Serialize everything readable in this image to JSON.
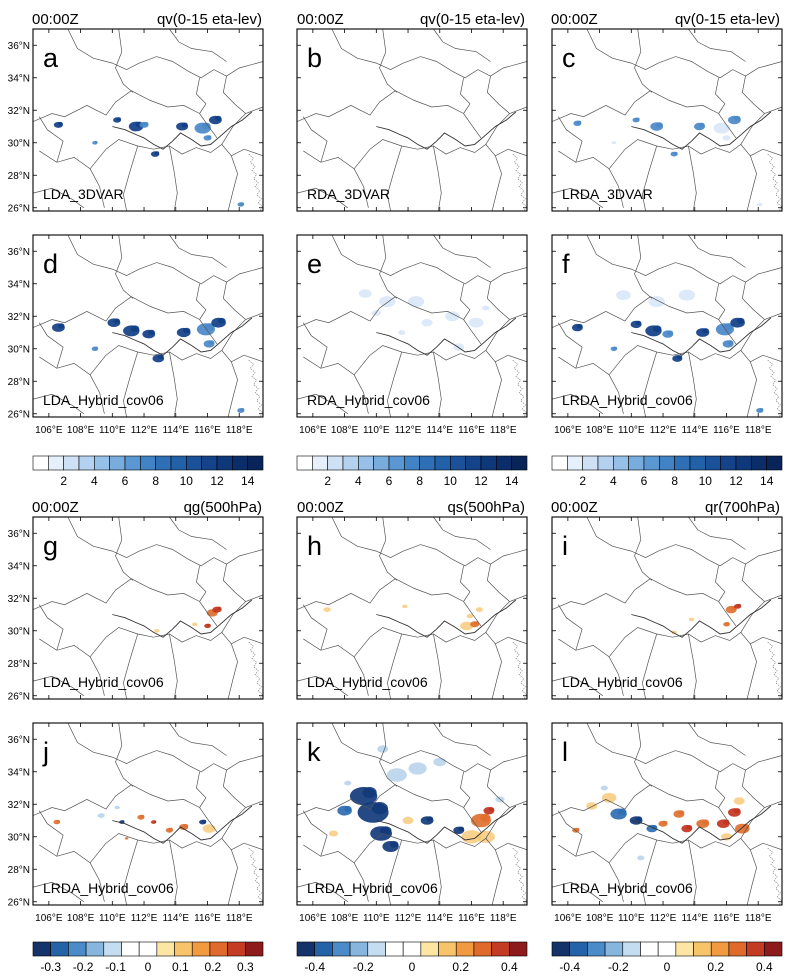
{
  "figure": {
    "rows": [
      {
        "time": "00:00Z",
        "variables": [
          "qv(0-15 eta-lev)",
          "qv(0-15 eta-lev)",
          "qv(0-15 eta-lev)"
        ]
      },
      null,
      {
        "time": "00:00Z",
        "variables": [
          "qg(500hPa)",
          "qs(500hPa)",
          "qr(700hPa)"
        ]
      },
      null
    ],
    "panels": [
      {
        "letter": "a",
        "experiment": "LDA_3DVAR"
      },
      {
        "letter": "b",
        "experiment": "RDA_3DVAR"
      },
      {
        "letter": "c",
        "experiment": "LRDA_3DVAR"
      },
      {
        "letter": "d",
        "experiment": "LDA_Hybrid_cov06"
      },
      {
        "letter": "e",
        "experiment": "RDA_Hybrid_cov06"
      },
      {
        "letter": "f",
        "experiment": "LRDA_Hybrid_cov06"
      },
      {
        "letter": "g",
        "experiment": "LDA_Hybrid_cov06"
      },
      {
        "letter": "h",
        "experiment": "LDA_Hybrid_cov06"
      },
      {
        "letter": "i",
        "experiment": "LDA_Hybrid_cov06"
      },
      {
        "letter": "j",
        "experiment": "LRDA_Hybrid_cov06"
      },
      {
        "letter": "k",
        "experiment": "LRDA_Hybrid_cov06"
      },
      {
        "letter": "l",
        "experiment": "LRDA_Hybrid_cov06"
      }
    ],
    "lat_labels": [
      "36°N",
      "34°N",
      "32°N",
      "30°N",
      "28°N",
      "26°N"
    ],
    "lat_values": [
      36,
      34,
      32,
      30,
      28,
      26
    ],
    "lon_labels": [
      "106°E",
      "108°E",
      "110°E",
      "112°E",
      "114°E",
      "116°E",
      "118°E"
    ],
    "lon_values": [
      106,
      108,
      110,
      112,
      114,
      116,
      118
    ],
    "colorbars": {
      "qv": {
        "labels": [
          "2",
          "4",
          "6",
          "8",
          "10",
          "12",
          "14"
        ],
        "colors": [
          "#ffffff",
          "#e6f0fa",
          "#cfe2f5",
          "#b4d2ef",
          "#96c0e7",
          "#78acdd",
          "#5b97d2",
          "#4283c5",
          "#2f6fb6",
          "#2260a8",
          "#1a5199",
          "#14438a",
          "#0f387a",
          "#0b2d69",
          "#082458"
        ]
      },
      "top_row": {
        "labels": [
          "-0.3",
          "-0.2",
          "-0.1",
          "0",
          "0.1",
          "0.2",
          "0.3"
        ],
        "colors": [
          "#14336b",
          "#2563a8",
          "#4b8bc7",
          "#86b6dd",
          "#c4ddf0",
          "#ffffff",
          "#ffffff",
          "#fde6a3",
          "#f8c46a",
          "#f29a40",
          "#df6a2c",
          "#c23b22",
          "#8e1b1b"
        ]
      },
      "bottom_row": {
        "labels": [
          "-0.4",
          "-0.2",
          "0",
          "0.2",
          "0.4"
        ],
        "colors": [
          "#14336b",
          "#2563a8",
          "#4b8bc7",
          "#86b6dd",
          "#c4ddf0",
          "#ffffff",
          "#ffffff",
          "#fde6a3",
          "#f8c46a",
          "#f29a40",
          "#df6a2c",
          "#c23b22",
          "#8e1b1b"
        ]
      }
    },
    "colors": {
      "qv_light": "#cfe2f5",
      "qv_mid": "#4a88c8",
      "qv_dark": "#113f85",
      "neg_dark": "#123a7a",
      "neg_light": "#a9cbe8",
      "pos_light": "#f7c36a",
      "pos_dark": "#c2341f",
      "boundary": "#555555"
    }
  }
}
